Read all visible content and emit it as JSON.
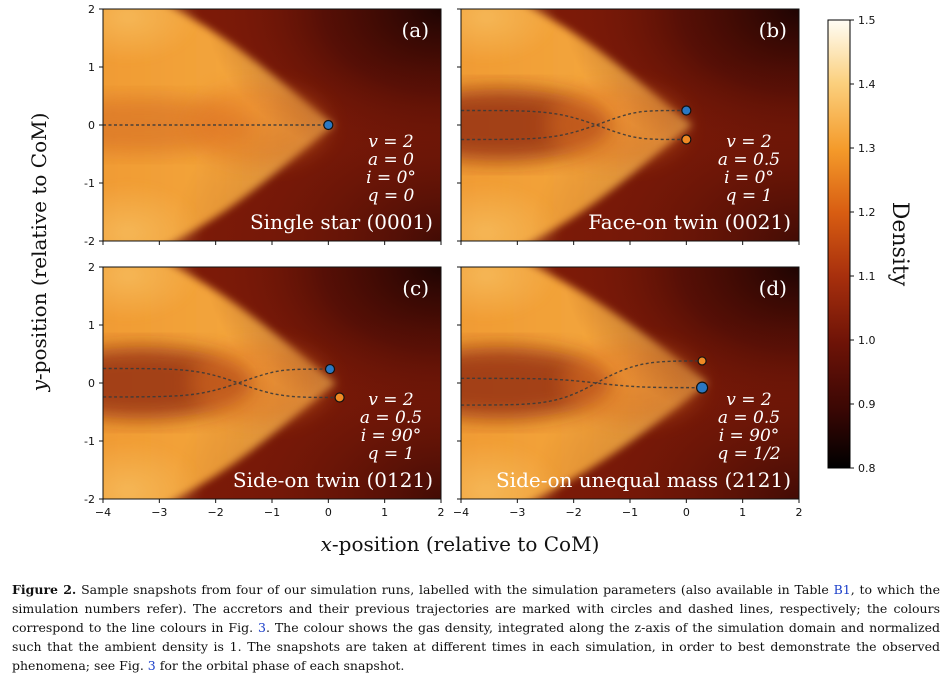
{
  "figure": {
    "xlabel": "x-position (relative to CoM)",
    "ylabel": "y-position (relative to CoM)",
    "x_ticks": [
      "−4",
      "−3",
      "−2",
      "−1",
      "0",
      "1",
      "2"
    ],
    "y_ticks": [
      "2",
      "1",
      "0",
      "-1",
      "-2"
    ],
    "colorbar": {
      "label": "Density",
      "ticks": [
        "1.5",
        "1.4",
        "1.3",
        "1.2",
        "1.1",
        "1.0",
        "0.9",
        "0.8"
      ],
      "range": [
        0.8,
        1.5
      ]
    },
    "panels": [
      {
        "tag": "(a)",
        "title": "Single star (0001)",
        "v": "v = 2",
        "a": "a = 0",
        "i": "i = 0°",
        "q": "q = 0",
        "stars": [
          {
            "x": 0.0,
            "y": 0.0,
            "color": "#2b78c2"
          }
        ]
      },
      {
        "tag": "(b)",
        "title": "Face-on twin (0021)",
        "v": "v = 2",
        "a": "a = 0.5",
        "i": "i = 0°",
        "q": "q = 1",
        "stars": [
          {
            "x": 0.0,
            "y": 0.25,
            "color": "#2b78c2"
          },
          {
            "x": 0.0,
            "y": -0.25,
            "color": "#f08a24"
          }
        ]
      },
      {
        "tag": "(c)",
        "title": "Side-on twin (0121)",
        "v": "v = 2",
        "a": "a = 0.5",
        "i": "i = 90°",
        "q": "q = 1",
        "stars": [
          {
            "x": 0.03,
            "y": 0.24,
            "color": "#2b78c2"
          },
          {
            "x": 0.2,
            "y": -0.25,
            "color": "#f08a24"
          }
        ]
      },
      {
        "tag": "(d)",
        "title": "Side-on unequal mass (2121)",
        "v": "v = 2",
        "a": "a = 0.5",
        "i": "i = 90°",
        "q": "q = 1/2",
        "stars": [
          {
            "x": 0.28,
            "y": 0.38,
            "color": "#f08a24"
          },
          {
            "x": 0.28,
            "y": -0.08,
            "color": "#2b78c2"
          }
        ]
      }
    ]
  },
  "caption": {
    "label": "Figure 2.",
    "text_1": " Sample snapshots from four of our simulation runs, labelled with the simulation parameters (also available in Table ",
    "ref_1": "B1",
    "text_2": ", to which the simulation numbers refer). The accretors and their previous trajectories are marked with circles and dashed lines, respectively; the colours correspond to the line colours in Fig. ",
    "ref_2": "3",
    "text_3": ". The colour shows the gas density, integrated along the z-axis of the simulation domain and normalized such that the ambient density is 1. The snapshots are taken at different times in each simulation, in order to best demonstrate the observed phenomena; see Fig. ",
    "ref_3": "3",
    "text_4": " for the orbital phase of each snapshot."
  }
}
